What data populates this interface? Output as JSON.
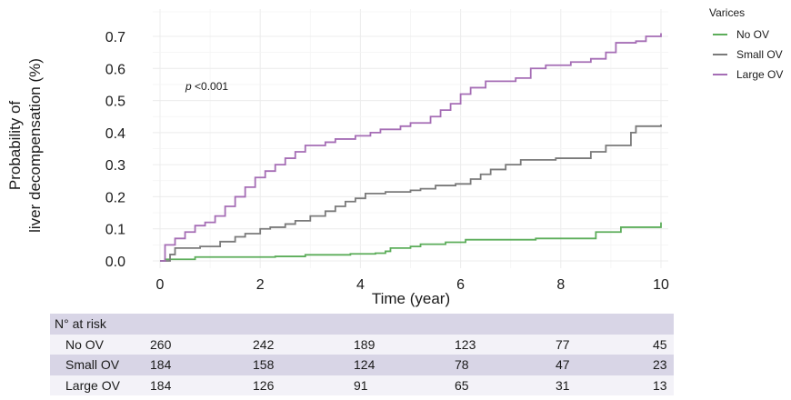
{
  "chart_data": {
    "type": "line",
    "xlabel": "Time (year)",
    "ylabel": [
      "Probability of",
      "liver decompensation (%)"
    ],
    "xlim": [
      0,
      10
    ],
    "ylim": [
      0,
      0.7
    ],
    "x_ticks": [
      0,
      2,
      4,
      6,
      8,
      10
    ],
    "x_tick_labels": [
      "0",
      "2",
      "4",
      "6",
      "8",
      "10"
    ],
    "y_ticks": [
      0,
      0.1,
      0.2,
      0.3,
      0.4,
      0.5,
      0.6,
      0.7
    ],
    "y_tick_labels": [
      "0.0",
      "0.1",
      "0.2",
      "0.3",
      "0.4",
      "0.5",
      "0.6",
      "0.7"
    ],
    "grid": true,
    "step": true,
    "legend": {
      "title": "Varices",
      "position": "top-right"
    },
    "annotation": {
      "italic": "p",
      "text": " <0.001",
      "x": 0.5,
      "y": 0.55
    },
    "series": [
      {
        "name": "No OV",
        "color": "#5cad5a",
        "points": [
          [
            0,
            0
          ],
          [
            0.1,
            0.005
          ],
          [
            0.7,
            0.012
          ],
          [
            2.3,
            0.014
          ],
          [
            2.9,
            0.019
          ],
          [
            3.8,
            0.022
          ],
          [
            4.3,
            0.024
          ],
          [
            4.5,
            0.03
          ],
          [
            4.6,
            0.04
          ],
          [
            5.0,
            0.045
          ],
          [
            5.2,
            0.052
          ],
          [
            5.7,
            0.058
          ],
          [
            6.1,
            0.066
          ],
          [
            7.5,
            0.07
          ],
          [
            8.7,
            0.09
          ],
          [
            9.2,
            0.105
          ],
          [
            10,
            0.12
          ]
        ]
      },
      {
        "name": "Small OV",
        "color": "#7a7a7a",
        "points": [
          [
            0,
            0
          ],
          [
            0.2,
            0.02
          ],
          [
            0.3,
            0.04
          ],
          [
            0.8,
            0.045
          ],
          [
            1.2,
            0.06
          ],
          [
            1.5,
            0.075
          ],
          [
            1.7,
            0.085
          ],
          [
            2.0,
            0.1
          ],
          [
            2.2,
            0.105
          ],
          [
            2.5,
            0.115
          ],
          [
            2.7,
            0.125
          ],
          [
            3.0,
            0.14
          ],
          [
            3.3,
            0.155
          ],
          [
            3.5,
            0.17
          ],
          [
            3.7,
            0.185
          ],
          [
            3.9,
            0.195
          ],
          [
            4.1,
            0.21
          ],
          [
            4.5,
            0.215
          ],
          [
            5.0,
            0.22
          ],
          [
            5.2,
            0.225
          ],
          [
            5.5,
            0.235
          ],
          [
            5.9,
            0.24
          ],
          [
            6.2,
            0.255
          ],
          [
            6.4,
            0.27
          ],
          [
            6.6,
            0.285
          ],
          [
            6.9,
            0.3
          ],
          [
            7.2,
            0.315
          ],
          [
            7.9,
            0.32
          ],
          [
            8.6,
            0.34
          ],
          [
            8.9,
            0.36
          ],
          [
            9.4,
            0.4
          ],
          [
            9.5,
            0.42
          ],
          [
            10,
            0.425
          ]
        ]
      },
      {
        "name": "Large OV",
        "color": "#a56db5",
        "points": [
          [
            0,
            0
          ],
          [
            0.1,
            0.05
          ],
          [
            0.3,
            0.07
          ],
          [
            0.5,
            0.09
          ],
          [
            0.7,
            0.11
          ],
          [
            0.9,
            0.12
          ],
          [
            1.1,
            0.14
          ],
          [
            1.3,
            0.17
          ],
          [
            1.5,
            0.2
          ],
          [
            1.7,
            0.23
          ],
          [
            1.9,
            0.26
          ],
          [
            2.1,
            0.28
          ],
          [
            2.3,
            0.3
          ],
          [
            2.5,
            0.32
          ],
          [
            2.7,
            0.34
          ],
          [
            2.9,
            0.36
          ],
          [
            3.3,
            0.37
          ],
          [
            3.5,
            0.38
          ],
          [
            3.9,
            0.39
          ],
          [
            4.2,
            0.4
          ],
          [
            4.4,
            0.41
          ],
          [
            4.8,
            0.42
          ],
          [
            5.0,
            0.43
          ],
          [
            5.4,
            0.45
          ],
          [
            5.6,
            0.47
          ],
          [
            5.8,
            0.49
          ],
          [
            6.0,
            0.52
          ],
          [
            6.2,
            0.54
          ],
          [
            6.5,
            0.56
          ],
          [
            7.1,
            0.57
          ],
          [
            7.4,
            0.6
          ],
          [
            7.7,
            0.61
          ],
          [
            8.2,
            0.62
          ],
          [
            8.6,
            0.63
          ],
          [
            8.9,
            0.65
          ],
          [
            9.1,
            0.68
          ],
          [
            9.5,
            0.685
          ],
          [
            9.7,
            0.7
          ],
          [
            10,
            0.71
          ]
        ]
      }
    ]
  },
  "risk_table": {
    "header": "N° at risk",
    "rows": [
      {
        "label": "No OV",
        "values": [
          "260",
          "242",
          "189",
          "123",
          "77",
          "45"
        ]
      },
      {
        "label": "Small OV",
        "values": [
          "184",
          "158",
          "124",
          "78",
          "47",
          "23"
        ]
      },
      {
        "label": "Large OV",
        "values": [
          "184",
          "126",
          "91",
          "65",
          "31",
          "13"
        ]
      }
    ]
  }
}
